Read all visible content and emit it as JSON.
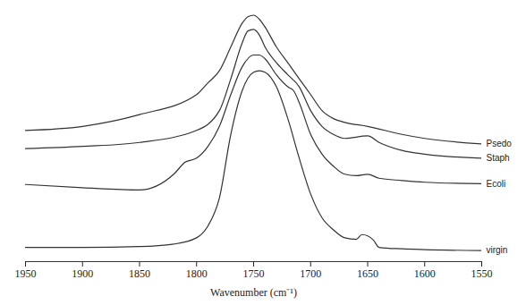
{
  "chart_data": {
    "type": "line",
    "x_label": "Wavenumber (cm⁻¹)",
    "xlim": [
      1950,
      1550
    ],
    "xticks": [
      1950,
      1900,
      1850,
      1800,
      1750,
      1700,
      1650,
      1600,
      1550
    ],
    "ylim": [
      0,
      100
    ],
    "tick_labels": "x",
    "grid": false,
    "series": [
      {
        "name": "Psedo",
        "color": "#333333",
        "x": [
          1950,
          1900,
          1850,
          1800,
          1790,
          1780,
          1770,
          1760,
          1755,
          1750,
          1745,
          1740,
          1730,
          1720,
          1710,
          1700,
          1690,
          1680,
          1670,
          1650,
          1620,
          1600,
          1550
        ],
        "values": [
          52.4,
          54.0,
          58.7,
          66.7,
          71.4,
          76.2,
          85.7,
          95.2,
          97.8,
          98.4,
          96.8,
          93.7,
          85.7,
          79.4,
          73.0,
          66.7,
          60.3,
          57.1,
          55.6,
          54.0,
          50.8,
          49.2,
          47.0
        ]
      },
      {
        "name": "Staph",
        "color": "#333333",
        "x": [
          1950,
          1900,
          1850,
          1800,
          1780,
          1770,
          1760,
          1755,
          1750,
          1745,
          1740,
          1730,
          1720,
          1710,
          1700,
          1690,
          1680,
          1670,
          1650,
          1640,
          1620,
          1600,
          1550
        ],
        "values": [
          45.1,
          46.0,
          47.6,
          52.4,
          60.3,
          73.0,
          87.3,
          92.1,
          92.7,
          90.5,
          85.7,
          79.4,
          74.6,
          69.8,
          60.3,
          54.0,
          50.8,
          49.2,
          50.2,
          47.6,
          44.4,
          42.9,
          41.3
        ]
      },
      {
        "name": "Ecoli",
        "color": "#333333",
        "x": [
          1950,
          1900,
          1850,
          1820,
          1810,
          1800,
          1790,
          1780,
          1770,
          1760,
          1750,
          1745,
          1740,
          1730,
          1720,
          1715,
          1710,
          1700,
          1690,
          1680,
          1670,
          1660,
          1650,
          1640,
          1620,
          1600,
          1550
        ],
        "values": [
          30.8,
          29.5,
          28.6,
          34.9,
          39.7,
          41.3,
          46.0,
          54.0,
          66.7,
          77.8,
          82.5,
          82.5,
          81.0,
          74.6,
          69.8,
          68.3,
          63.5,
          50.8,
          42.9,
          38.1,
          34.9,
          34.3,
          34.9,
          33.3,
          32.4,
          31.7,
          31.1
        ]
      },
      {
        "name": "virgin",
        "color": "#333333",
        "x": [
          1950,
          1900,
          1850,
          1820,
          1800,
          1790,
          1780,
          1770,
          1760,
          1750,
          1745,
          1740,
          1730,
          1720,
          1710,
          1700,
          1690,
          1680,
          1670,
          1660,
          1655,
          1645,
          1640,
          1620,
          1600,
          1550
        ],
        "values": [
          5.7,
          5.7,
          6.0,
          7.0,
          9.5,
          14.3,
          25.4,
          50.8,
          68.3,
          75.6,
          76.2,
          75.6,
          69.8,
          57.1,
          41.3,
          27.0,
          17.5,
          12.7,
          9.5,
          8.9,
          10.8,
          8.6,
          5.7,
          5.1,
          4.8,
          4.4
        ]
      }
    ]
  }
}
